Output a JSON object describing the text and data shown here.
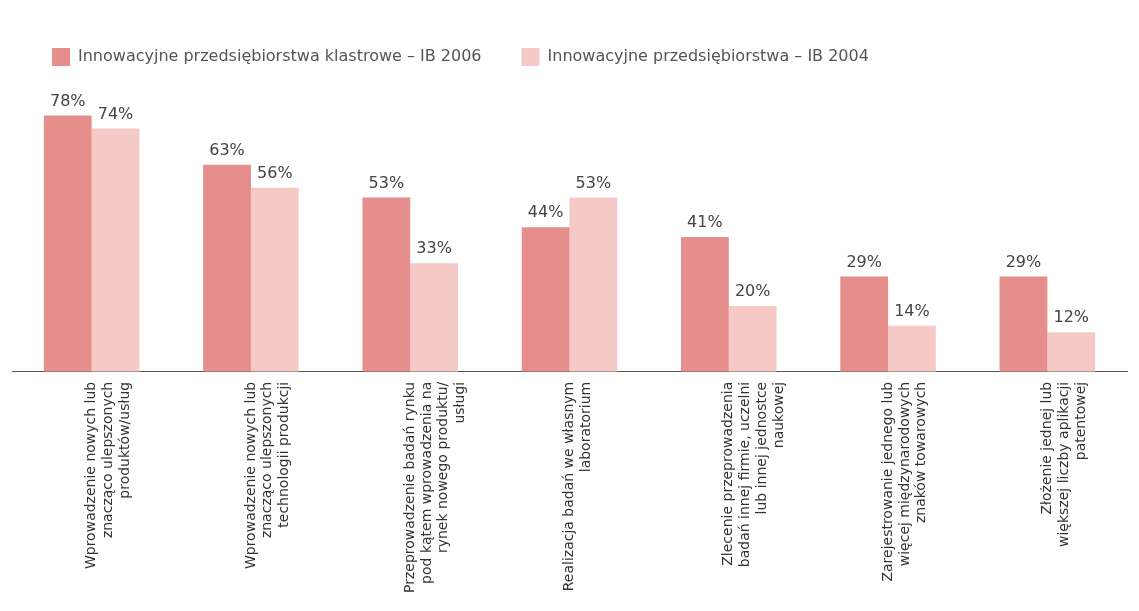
{
  "chart_data": {
    "type": "bar",
    "categories": [
      "Wprowadzenie nowych lub znacząco ulepszonych produktów/usług",
      "Wprowadzenie nowych lub znacząco ulepszonych technologii produkcji",
      "Przeprowadzenie badań rynku pod kątem wprowadzenia na rynek nowego produktu/ usługi",
      "Realizacja badań we własnym laboratorium",
      "Zlecenie przeprowadzenia badań innej firmie, uczelni lub innej jednostce naukowej",
      "Zarejestrowanie jednego lub więcej międzynarodowych znaków towarowych",
      "Złożenie jednej lub większej liczby aplikacji patentowej"
    ],
    "series": [
      {
        "name": "Innowacyjne przedsiębiorstwa klastrowe – IB 2006",
        "color": "#e58e8c",
        "values": [
          78,
          63,
          53,
          44,
          41,
          29,
          29
        ],
        "value_labels": [
          "78%",
          "63%",
          "53%",
          "44%",
          "41%",
          "29%",
          "29%"
        ]
      },
      {
        "name": "Innowacyjne przedsiębiorstwa – IB 2004",
        "color": "#f5c9c6",
        "values": [
          74,
          56,
          33,
          53,
          20,
          14,
          12
        ],
        "value_labels": [
          "74%",
          "56%",
          "33%",
          "53%",
          "20%",
          "14%",
          "12%"
        ]
      }
    ],
    "legend": "top left",
    "grid": false
  }
}
